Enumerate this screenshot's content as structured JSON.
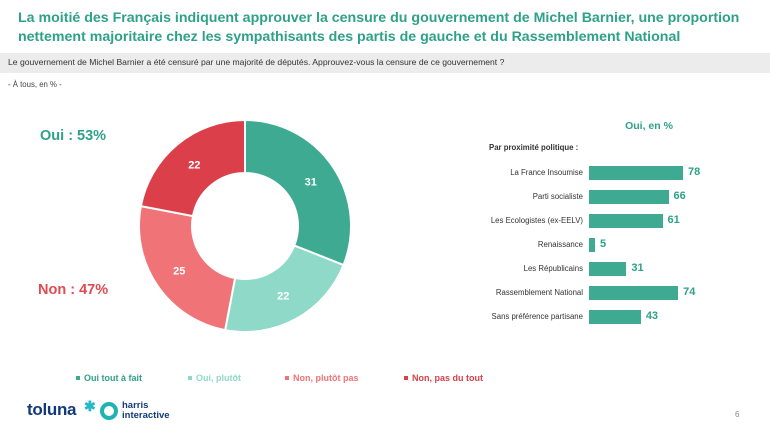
{
  "header": {
    "title": "La moitié des Français indiquent approuver la censure du gouvernement de Michel Barnier, une proportion nettement majoritaire chez les sympathisants des partis de gauche et du Rassemblement National",
    "question": "Le gouvernement de Michel Barnier a été censuré par une majorité de députés. Approuvez-vous la censure de ce gouvernement ?",
    "base": "- À tous, en % -"
  },
  "totals": {
    "oui": "Oui : 53%",
    "non": "Non : 47%"
  },
  "chart_data": [
    {
      "type": "pie",
      "donut": true,
      "categories": [
        "Oui tout à fait",
        "Oui, plutôt",
        "Non, plutôt pas",
        "Non, pas du tout"
      ],
      "values": [
        31,
        22,
        25,
        22
      ],
      "value_labels": [
        "31",
        "22",
        "25",
        "22"
      ],
      "colors": [
        "#3daa91",
        "#8fd9c9",
        "#f07378",
        "#db3f49"
      ],
      "legend_placement": "bottom"
    },
    {
      "type": "bar",
      "orientation": "horizontal",
      "title": "Oui, en %",
      "subtitle": "Par proximité politique :",
      "categories": [
        "La France Insoumise",
        "Parti socialiste",
        "Les Ecologistes (ex-EELV)",
        "Renaissance",
        "Les Républicains",
        "Rassemblement National",
        "Sans préférence partisane"
      ],
      "values": [
        78,
        66,
        61,
        5,
        31,
        74,
        43
      ],
      "value_labels": [
        "78",
        "66",
        "61",
        "5",
        "31",
        "74",
        "43"
      ],
      "color": "#3daa91",
      "xlim": [
        0,
        100
      ],
      "grid": false
    }
  ],
  "footer": {
    "brand_toluna": "toluna",
    "brand_harris_line1": "harris",
    "brand_harris_line2": "interactive",
    "page_number": "6"
  }
}
